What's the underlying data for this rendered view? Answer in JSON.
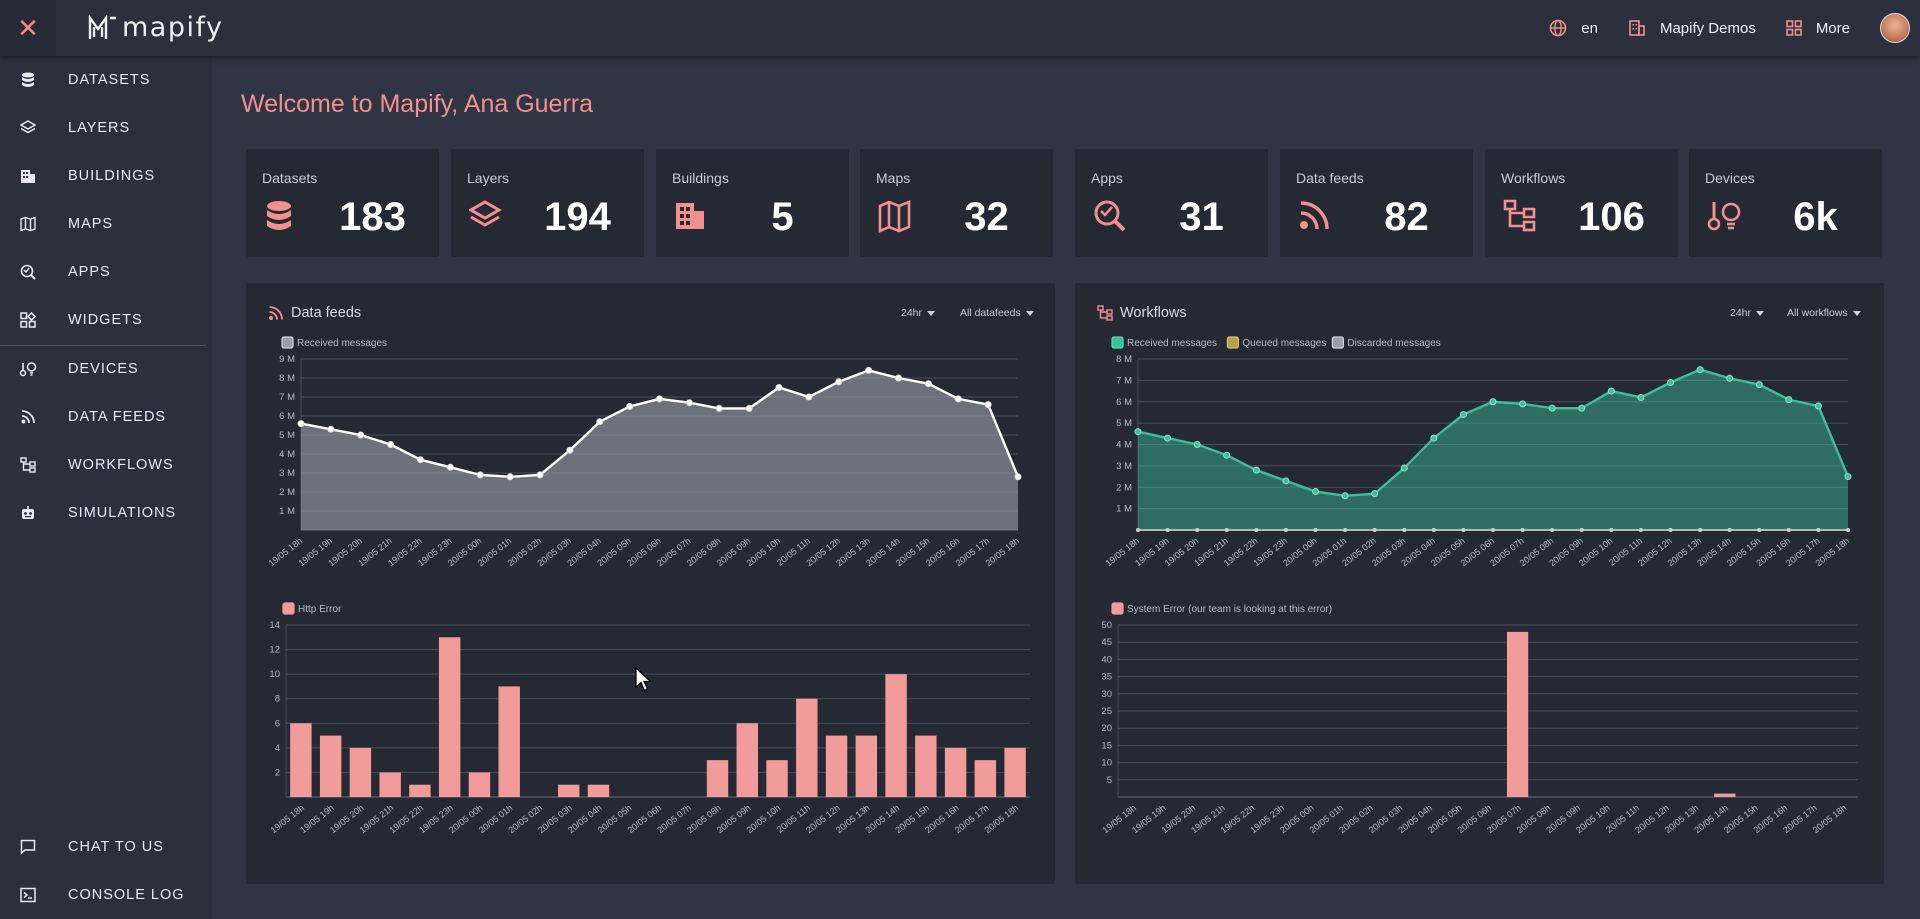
{
  "header": {
    "logo_text": "mapify",
    "language": "en",
    "workspace": "Mapify Demos",
    "more": "More"
  },
  "sidebar": {
    "items": [
      {
        "label": "DATASETS"
      },
      {
        "label": "LAYERS"
      },
      {
        "label": "BUILDINGS"
      },
      {
        "label": "MAPS"
      },
      {
        "label": "APPS"
      },
      {
        "label": "WIDGETS"
      },
      {
        "label": "DEVICES"
      },
      {
        "label": "DATA FEEDS"
      },
      {
        "label": "WORKFLOWS"
      },
      {
        "label": "SIMULATIONS"
      },
      {
        "label": "CHAT TO US"
      },
      {
        "label": "CONSOLE LOG"
      }
    ]
  },
  "page": {
    "title": "Welcome to Mapify, Ana Guerra"
  },
  "stats": [
    {
      "label": "Datasets",
      "value": "183",
      "icon": "database-icon"
    },
    {
      "label": "Layers",
      "value": "194",
      "icon": "layers-icon"
    },
    {
      "label": "Buildings",
      "value": "5",
      "icon": "building-icon"
    },
    {
      "label": "Maps",
      "value": "32",
      "icon": "map-icon"
    },
    {
      "label": "Apps",
      "value": "31",
      "icon": "apps-icon"
    },
    {
      "label": "Data feeds",
      "value": "82",
      "icon": "rss-icon"
    },
    {
      "label": "Workflows",
      "value": "106",
      "icon": "workflow-icon"
    },
    {
      "label": "Devices",
      "value": "6k",
      "icon": "devices-icon"
    }
  ],
  "panels": {
    "datafeeds": {
      "title": "Data feeds",
      "range": "24hr",
      "filter": "All datafeeds"
    },
    "workflows": {
      "title": "Workflows",
      "range": "24hr",
      "filter": "All workflows"
    }
  },
  "colors": {
    "accent": "#f29090",
    "bar": "#f29b9b",
    "teal": "#3dbf9c",
    "grey_area": "#6b6f7b"
  },
  "chart_data": [
    {
      "type": "area",
      "name": "datafeeds-messages",
      "categories": [
        "19/05 18h",
        "19/05 19h",
        "19/05 20h",
        "19/05 21h",
        "19/05 22h",
        "19/05 23h",
        "20/05 00h",
        "20/05 01h",
        "20/05 02h",
        "20/05 03h",
        "20/05 04h",
        "20/05 05h",
        "20/05 06h",
        "20/05 07h",
        "20/05 08h",
        "20/05 09h",
        "20/05 10h",
        "20/05 11h",
        "20/05 12h",
        "20/05 13h",
        "20/05 14h",
        "20/05 15h",
        "20/05 16h",
        "20/05 17h",
        "20/05 18h"
      ],
      "series": [
        {
          "name": "Received messages",
          "values": [
            5.6,
            5.3,
            5.0,
            4.5,
            3.7,
            3.3,
            2.9,
            2.8,
            2.9,
            4.2,
            5.7,
            6.5,
            6.9,
            6.7,
            6.4,
            6.4,
            7.5,
            7.0,
            7.8,
            8.4,
            8.0,
            7.7,
            6.9,
            6.6,
            2.8
          ]
        }
      ],
      "ylim": [
        0,
        9
      ],
      "yticks": [
        "1 M",
        "2 M",
        "3 M",
        "4 M",
        "5 M",
        "6 M",
        "7 M",
        "8 M",
        "9 M"
      ],
      "legend": [
        "Received messages"
      ]
    },
    {
      "type": "bar",
      "name": "datafeeds-errors",
      "categories": [
        "19/05 18h",
        "19/05 19h",
        "19/05 20h",
        "19/05 21h",
        "19/05 22h",
        "19/05 23h",
        "20/05 00h",
        "20/05 01h",
        "20/05 02h",
        "20/05 03h",
        "20/05 04h",
        "20/05 05h",
        "20/05 06h",
        "20/05 07h",
        "20/05 08h",
        "20/05 09h",
        "20/05 10h",
        "20/05 11h",
        "20/05 12h",
        "20/05 13h",
        "20/05 14h",
        "20/05 15h",
        "20/05 16h",
        "20/05 17h",
        "20/05 18h"
      ],
      "series": [
        {
          "name": "Http Error",
          "values": [
            6,
            5,
            4,
            2,
            1,
            13,
            2,
            9,
            0,
            1,
            1,
            0,
            0,
            0,
            3,
            6,
            3,
            8,
            5,
            5,
            10,
            5,
            4,
            3,
            4
          ]
        }
      ],
      "ylim": [
        0,
        14
      ],
      "yticks": [
        "2",
        "4",
        "6",
        "8",
        "10",
        "12",
        "14"
      ],
      "legend": [
        "Http Error"
      ]
    },
    {
      "type": "area",
      "name": "workflows-messages",
      "categories": [
        "19/05 18h",
        "19/05 19h",
        "19/05 20h",
        "19/05 21h",
        "19/05 22h",
        "19/05 23h",
        "20/05 00h",
        "20/05 01h",
        "20/05 02h",
        "20/05 03h",
        "20/05 04h",
        "20/05 05h",
        "20/05 06h",
        "20/05 07h",
        "20/05 08h",
        "20/05 09h",
        "20/05 10h",
        "20/05 11h",
        "20/05 12h",
        "20/05 13h",
        "20/05 14h",
        "20/05 15h",
        "20/05 16h",
        "20/05 17h",
        "20/05 18h"
      ],
      "series": [
        {
          "name": "Received messages",
          "values": [
            4.6,
            4.3,
            4.0,
            3.5,
            2.8,
            2.3,
            1.8,
            1.6,
            1.7,
            2.9,
            4.3,
            5.4,
            6.0,
            5.9,
            5.7,
            5.7,
            6.5,
            6.2,
            6.9,
            7.5,
            7.1,
            6.8,
            6.1,
            5.8,
            2.5
          ]
        },
        {
          "name": "Queued messages",
          "values": [
            0,
            0,
            0,
            0,
            0,
            0,
            0,
            0,
            0,
            0,
            0,
            0,
            0,
            0,
            0,
            0,
            0,
            0,
            0,
            0,
            0,
            0,
            0,
            0,
            0
          ]
        },
        {
          "name": "Discarded messages",
          "values": [
            0,
            0,
            0,
            0,
            0,
            0,
            0,
            0,
            0,
            0,
            0,
            0,
            0,
            0,
            0,
            0,
            0,
            0,
            0,
            0,
            0,
            0,
            0,
            0,
            0
          ]
        }
      ],
      "ylim": [
        0,
        8
      ],
      "yticks": [
        "1 M",
        "2 M",
        "3 M",
        "4 M",
        "5 M",
        "6 M",
        "7 M",
        "8 M"
      ],
      "legend": [
        "Received messages",
        "Queued messages",
        "Discarded messages"
      ]
    },
    {
      "type": "bar",
      "name": "workflows-errors",
      "categories": [
        "19/05 18h",
        "19/05 19h",
        "19/05 20h",
        "19/05 21h",
        "19/05 22h",
        "19/05 23h",
        "20/05 00h",
        "20/05 01h",
        "20/05 02h",
        "20/05 03h",
        "20/05 04h",
        "20/05 05h",
        "20/05 06h",
        "20/05 07h",
        "20/05 08h",
        "20/05 09h",
        "20/05 10h",
        "20/05 11h",
        "20/05 12h",
        "20/05 13h",
        "20/05 14h",
        "20/05 15h",
        "20/05 16h",
        "20/05 17h",
        "20/05 18h"
      ],
      "series": [
        {
          "name": "System Error (our team is looking at this error)",
          "values": [
            0,
            0,
            0,
            0,
            0,
            0,
            0,
            0,
            0,
            0,
            0,
            0,
            0,
            48,
            0,
            0,
            0,
            0,
            0,
            0,
            1,
            0,
            0,
            0,
            0
          ]
        }
      ],
      "ylim": [
        0,
        50
      ],
      "yticks": [
        "5",
        "10",
        "15",
        "20",
        "25",
        "30",
        "35",
        "40",
        "45",
        "50"
      ],
      "legend": [
        "System Error (our team is looking at this error)"
      ]
    }
  ]
}
